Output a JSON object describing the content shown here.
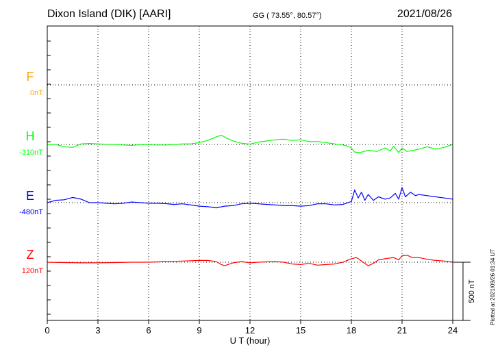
{
  "header": {
    "station": "Dixon Island (DIK)  [AARI]",
    "coords": "GG ( 73.55°,  80.57°)",
    "date": "2021/08/26"
  },
  "footer": {
    "plotted": "Plotted at 2021/09/26 01:34 UT"
  },
  "chart_data": {
    "type": "line",
    "xlabel": "U T (hour)",
    "xlim": [
      0,
      24
    ],
    "x_ticks": [
      "0",
      "3",
      "6",
      "9",
      "12",
      "15",
      "18",
      "21",
      "24"
    ],
    "grid": true,
    "scale_bar": {
      "label": "500 nT",
      "value_nT": 500
    },
    "series": [
      {
        "name": "F",
        "baseline_label": "0nT",
        "color": "#ffa500",
        "x": [],
        "y": []
      },
      {
        "name": "H",
        "baseline_label": "-310nT",
        "color": "#00ff00",
        "x": [
          0,
          0.5,
          1.0,
          1.5,
          2.0,
          2.5,
          3.0,
          3.5,
          4.0,
          4.5,
          5.0,
          5.5,
          6.0,
          6.5,
          7.0,
          7.5,
          8.0,
          8.5,
          9.0,
          9.5,
          10.0,
          10.3,
          10.6,
          11.0,
          11.5,
          12.0,
          12.5,
          13.0,
          13.5,
          14.0,
          14.5,
          15.0,
          15.5,
          16.0,
          16.5,
          17.0,
          17.5,
          17.8,
          18.0,
          18.2,
          18.5,
          19.0,
          19.5,
          20.0,
          20.3,
          20.5,
          20.8,
          21.0,
          21.3,
          21.7,
          22.0,
          22.5,
          23.0,
          23.5,
          24.0
        ],
        "y": [
          0,
          0,
          -20,
          -25,
          5,
          8,
          5,
          2,
          0,
          -5,
          -8,
          -2,
          -2,
          -5,
          -5,
          0,
          5,
          5,
          15,
          35,
          65,
          80,
          55,
          30,
          10,
          3,
          20,
          30,
          40,
          45,
          35,
          40,
          25,
          25,
          15,
          5,
          -5,
          -15,
          -30,
          -65,
          -70,
          -50,
          -60,
          -30,
          -55,
          -15,
          -70,
          -30,
          -60,
          -50,
          -40,
          -20,
          -40,
          -25,
          0
        ]
      },
      {
        "name": "E",
        "baseline_label": "-480nT",
        "color": "#0000ff",
        "x": [
          0,
          0.5,
          1.0,
          1.5,
          2.0,
          2.5,
          3.0,
          3.5,
          4.0,
          4.5,
          5.0,
          5.5,
          6.0,
          6.5,
          7.0,
          7.5,
          8.0,
          8.5,
          9.0,
          9.5,
          10.0,
          10.5,
          11.0,
          11.5,
          12.0,
          12.5,
          13.0,
          13.5,
          14.0,
          14.5,
          15.0,
          15.5,
          16.0,
          16.5,
          17.0,
          17.5,
          18.0,
          18.2,
          18.4,
          18.6,
          18.8,
          19.0,
          19.3,
          19.6,
          20.0,
          20.3,
          20.6,
          20.8,
          21.0,
          21.2,
          21.5,
          21.8,
          22.0,
          22.5,
          23.0,
          23.5,
          24.0
        ],
        "y": [
          0,
          20,
          25,
          45,
          30,
          0,
          0,
          -5,
          -10,
          -5,
          5,
          0,
          -5,
          -5,
          -8,
          -15,
          -10,
          -20,
          -30,
          -35,
          -45,
          -30,
          -25,
          -10,
          -5,
          -10,
          -15,
          -20,
          -25,
          -25,
          -30,
          -25,
          -10,
          -10,
          -20,
          -15,
          10,
          110,
          40,
          90,
          20,
          70,
          20,
          50,
          30,
          40,
          80,
          30,
          130,
          50,
          90,
          60,
          70,
          60,
          50,
          40,
          30
        ]
      },
      {
        "name": "Z",
        "baseline_label": "120nT",
        "color": "#ff0000",
        "x": [
          0,
          1,
          2,
          3,
          4,
          5,
          6,
          7,
          8,
          9,
          9.5,
          10,
          10.3,
          10.5,
          11,
          11.5,
          12,
          12.5,
          13,
          13.5,
          14,
          14.5,
          15,
          15.5,
          16,
          16.5,
          17,
          17.5,
          18,
          18.3,
          18.6,
          18.8,
          19.0,
          19.3,
          19.6,
          20,
          20.5,
          20.8,
          21.0,
          21.3,
          21.6,
          22,
          22.5,
          23,
          23.5,
          24
        ],
        "y": [
          0,
          -3,
          -5,
          -5,
          -3,
          0,
          0,
          5,
          10,
          15,
          15,
          5,
          -20,
          -30,
          -5,
          5,
          -5,
          0,
          3,
          5,
          0,
          -15,
          -20,
          -10,
          -25,
          -20,
          -15,
          0,
          30,
          40,
          10,
          -10,
          -30,
          -10,
          20,
          30,
          40,
          20,
          55,
          60,
          40,
          40,
          25,
          15,
          10,
          0
        ]
      }
    ]
  }
}
